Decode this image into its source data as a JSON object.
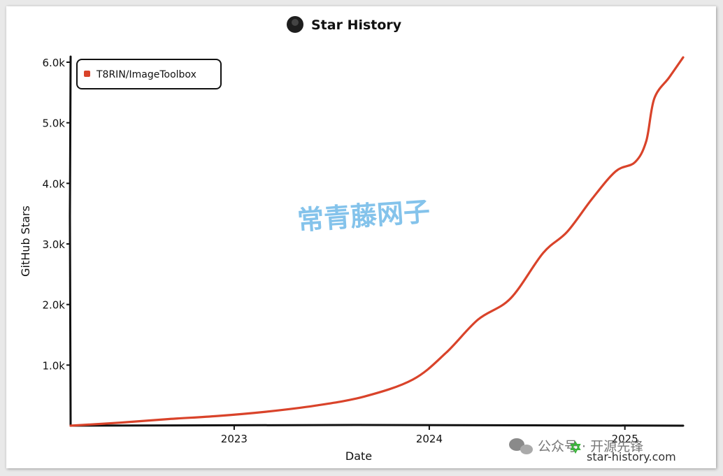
{
  "chart_data": {
    "type": "line",
    "title": "Star History",
    "xlabel": "Date",
    "ylabel": "GitHub Stars",
    "ylim": [
      0,
      6000
    ],
    "y_ticks": [
      {
        "value": 1000,
        "label": "1.0k"
      },
      {
        "value": 2000,
        "label": "2.0k"
      },
      {
        "value": 3000,
        "label": "3.0k"
      },
      {
        "value": 4000,
        "label": "4.0k"
      },
      {
        "value": 5000,
        "label": "5.0k"
      },
      {
        "value": 6000,
        "label": "6.0k"
      }
    ],
    "xlim": [
      "2022-03-01",
      "2025-04-20"
    ],
    "x_ticks": [
      {
        "value": "2023-01-01",
        "label": "2023"
      },
      {
        "value": "2024-01-01",
        "label": "2024"
      },
      {
        "value": "2025-01-01",
        "label": "2025"
      }
    ],
    "legend_position": "top-left",
    "grid": false,
    "series": [
      {
        "name": "T8RIN/ImageToolbox",
        "color": "#d9432a",
        "points": [
          {
            "x": "2022-03-01",
            "y": 0
          },
          {
            "x": "2022-06-01",
            "y": 50
          },
          {
            "x": "2022-09-01",
            "y": 110
          },
          {
            "x": "2022-12-01",
            "y": 160
          },
          {
            "x": "2023-03-01",
            "y": 230
          },
          {
            "x": "2023-06-01",
            "y": 330
          },
          {
            "x": "2023-09-01",
            "y": 480
          },
          {
            "x": "2023-12-01",
            "y": 760
          },
          {
            "x": "2024-02-01",
            "y": 1200
          },
          {
            "x": "2024-04-01",
            "y": 1750
          },
          {
            "x": "2024-06-01",
            "y": 2100
          },
          {
            "x": "2024-08-01",
            "y": 2850
          },
          {
            "x": "2024-09-15",
            "y": 3200
          },
          {
            "x": "2024-11-01",
            "y": 3750
          },
          {
            "x": "2024-12-15",
            "y": 4200
          },
          {
            "x": "2025-01-20",
            "y": 4350
          },
          {
            "x": "2025-02-10",
            "y": 4700
          },
          {
            "x": "2025-02-25",
            "y": 5400
          },
          {
            "x": "2025-03-25",
            "y": 5750
          },
          {
            "x": "2025-04-20",
            "y": 6080
          }
        ]
      }
    ]
  },
  "watermark": "常青藤网子",
  "footer": {
    "wechat_label": "公众号 · 开源先锋",
    "site": "star-history.com"
  },
  "icons": {
    "title_avatar": "github-user-avatar",
    "footer_logo": "star-history-logo-icon",
    "wechat": "wechat-icon"
  }
}
